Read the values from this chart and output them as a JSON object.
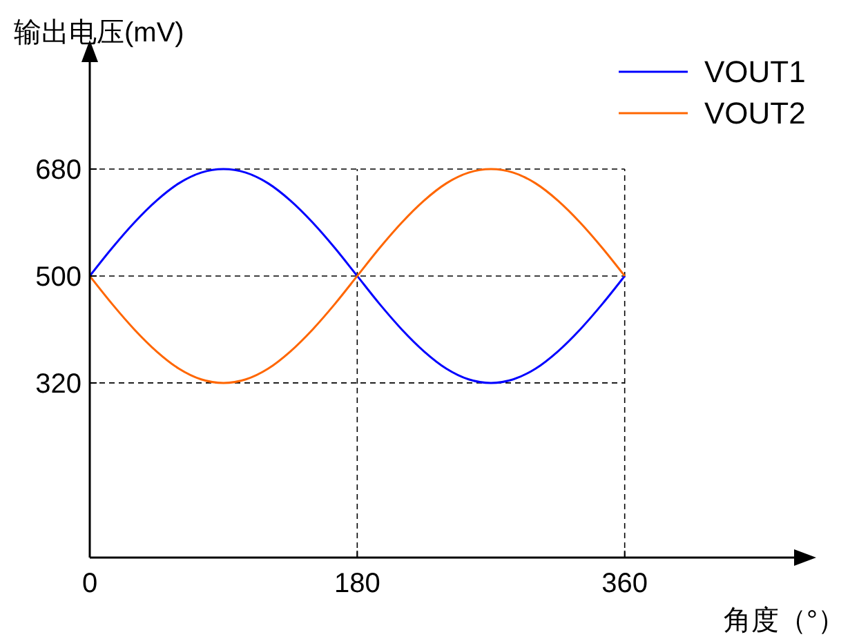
{
  "chart_data": {
    "type": "line",
    "ylabel": "输出电压(mV)",
    "xlabel": "角度（°）",
    "x": [
      0,
      15,
      30,
      45,
      60,
      75,
      90,
      105,
      120,
      135,
      150,
      165,
      180,
      195,
      210,
      225,
      240,
      255,
      270,
      285,
      300,
      315,
      330,
      345,
      360
    ],
    "series": [
      {
        "name": "VOUT1",
        "color": "#0000ff",
        "values": [
          500,
          547,
          590,
          627,
          656,
          674,
          680,
          674,
          656,
          627,
          590,
          547,
          500,
          453,
          410,
          373,
          344,
          326,
          320,
          326,
          344,
          373,
          410,
          453,
          500
        ]
      },
      {
        "name": "VOUT2",
        "color": "#ff6600",
        "values": [
          500,
          453,
          410,
          373,
          344,
          326,
          320,
          326,
          344,
          373,
          410,
          453,
          500,
          547,
          590,
          627,
          656,
          674,
          680,
          674,
          656,
          627,
          590,
          547,
          500
        ]
      }
    ],
    "xlim": [
      0,
      474
    ],
    "ylim": [
      26,
      860
    ],
    "xticks": [
      0,
      180,
      360
    ],
    "yticks": [
      320,
      500,
      680
    ],
    "grid": true,
    "legend": "top right",
    "marker": "none",
    "line_style": "solid"
  }
}
